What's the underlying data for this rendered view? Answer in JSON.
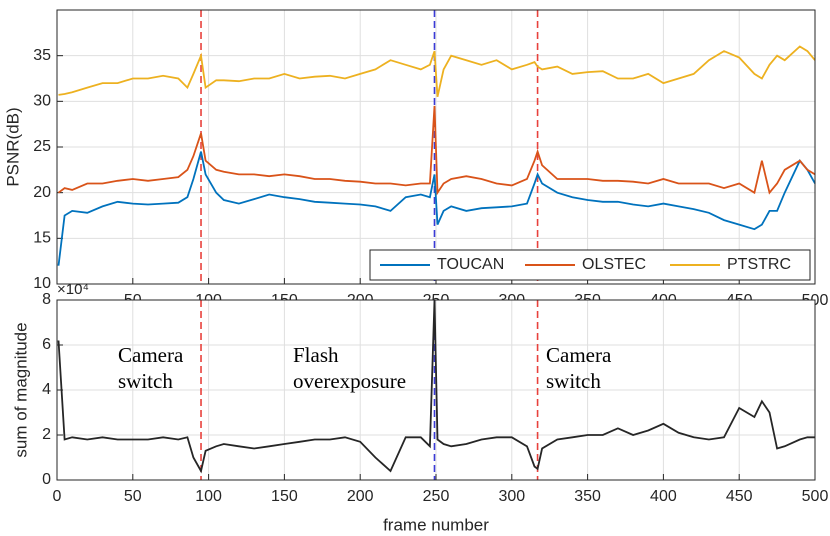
{
  "chart_data": [
    {
      "type": "line",
      "ylabel": "PSNR(dB)",
      "xlim": [
        0,
        500
      ],
      "ylim": [
        10,
        40
      ],
      "xticks": [
        50,
        100,
        150,
        200,
        250,
        300,
        350,
        400,
        450,
        500
      ],
      "yticks": [
        10,
        15,
        20,
        25,
        30,
        35
      ],
      "grid": true,
      "legend": "lower right",
      "x": [
        1,
        5,
        10,
        20,
        30,
        40,
        50,
        60,
        70,
        80,
        86,
        90,
        95,
        98,
        105,
        110,
        120,
        130,
        140,
        150,
        160,
        170,
        180,
        190,
        200,
        210,
        220,
        230,
        240,
        246,
        249,
        251,
        255,
        260,
        270,
        280,
        290,
        300,
        310,
        315,
        317,
        320,
        330,
        340,
        350,
        360,
        370,
        380,
        390,
        400,
        410,
        420,
        430,
        440,
        450,
        460,
        465,
        470,
        475,
        480,
        490,
        495,
        500
      ],
      "series": [
        {
          "name": "TOUCAN",
          "color": "#0072bd",
          "values": [
            12,
            17.5,
            18,
            17.8,
            18.5,
            19,
            18.8,
            18.7,
            18.8,
            18.9,
            19.5,
            21.5,
            24.5,
            22,
            20,
            19.2,
            18.8,
            19.3,
            19.8,
            19.5,
            19.3,
            19,
            18.9,
            18.8,
            18.7,
            18.5,
            18,
            19.5,
            19.8,
            19.5,
            22,
            16.5,
            18,
            18.5,
            18,
            18.3,
            18.4,
            18.5,
            18.8,
            21,
            22,
            21,
            20,
            19.5,
            19.2,
            19,
            19,
            18.7,
            18.5,
            18.8,
            18.5,
            18.2,
            17.8,
            17,
            16.5,
            16,
            16.5,
            18,
            18,
            20,
            23.5,
            22.5,
            21
          ]
        },
        {
          "name": "OLSTEC",
          "color": "#d95319",
          "values": [
            20,
            20.5,
            20.3,
            21,
            21,
            21.3,
            21.5,
            21.3,
            21.5,
            21.7,
            22.5,
            24,
            26.5,
            23.5,
            22.5,
            22.3,
            22,
            22,
            21.8,
            22,
            21.8,
            21.5,
            21.5,
            21.3,
            21.2,
            21,
            21,
            20.8,
            21,
            21,
            29.5,
            20,
            21,
            21.5,
            21.8,
            21.5,
            21,
            20.8,
            21.5,
            23.5,
            24.5,
            23,
            21.5,
            21.5,
            21.5,
            21.3,
            21.3,
            21.2,
            21,
            21.5,
            21,
            21,
            21,
            20.5,
            21,
            20,
            23.5,
            20,
            21,
            22.5,
            23.5,
            22.5,
            22
          ]
        },
        {
          "name": "PTSTRC",
          "color": "#edb120",
          "values": [
            30.7,
            30.8,
            31,
            31.5,
            32,
            32,
            32.5,
            32.5,
            32.8,
            32.5,
            31.5,
            33,
            35,
            31.5,
            32.3,
            32.3,
            32.2,
            32.5,
            32.5,
            33,
            32.5,
            32.7,
            32.8,
            32.5,
            33,
            33.5,
            34.5,
            34,
            33.5,
            34,
            35.5,
            30.5,
            33.5,
            35,
            34.5,
            34,
            34.5,
            33.5,
            34,
            34.3,
            33.8,
            33.5,
            33.8,
            33,
            33.2,
            33.3,
            32.5,
            32.5,
            33,
            32,
            32.5,
            33,
            34.5,
            35.5,
            34.8,
            33,
            32.5,
            34,
            35,
            34.5,
            36,
            35.5,
            34.5
          ]
        }
      ],
      "vlines": [
        {
          "x": 95,
          "color": "#e8413c"
        },
        {
          "x": 249,
          "color": "#3a3ad6"
        },
        {
          "x": 317,
          "color": "#e8413c"
        }
      ]
    },
    {
      "type": "line",
      "ylabel": "sum of magnitude",
      "xlabel": "frame number",
      "yscale_label": "×10⁴",
      "xlim": [
        0,
        500
      ],
      "ylim": [
        0,
        8
      ],
      "xticks": [
        0,
        50,
        100,
        150,
        200,
        250,
        300,
        350,
        400,
        450,
        500
      ],
      "yticks": [
        0,
        2,
        4,
        6,
        8
      ],
      "grid": true,
      "x": [
        1,
        5,
        10,
        20,
        30,
        40,
        50,
        60,
        70,
        80,
        86,
        90,
        95,
        98,
        105,
        110,
        120,
        130,
        140,
        150,
        160,
        170,
        180,
        190,
        200,
        210,
        220,
        230,
        240,
        246,
        249,
        251,
        255,
        260,
        270,
        280,
        290,
        300,
        310,
        315,
        317,
        320,
        330,
        340,
        350,
        360,
        370,
        380,
        390,
        400,
        410,
        420,
        430,
        440,
        450,
        460,
        465,
        470,
        475,
        480,
        490,
        495,
        500
      ],
      "series": [
        {
          "color": "#262626",
          "values": [
            6.2,
            1.8,
            1.9,
            1.8,
            1.9,
            1.8,
            1.8,
            1.8,
            1.9,
            1.8,
            1.9,
            1,
            0.4,
            1.3,
            1.5,
            1.6,
            1.5,
            1.4,
            1.5,
            1.6,
            1.7,
            1.8,
            1.8,
            1.9,
            1.7,
            1,
            0.4,
            1.9,
            1.9,
            1.5,
            8,
            1.8,
            1.6,
            1.5,
            1.6,
            1.8,
            1.9,
            1.9,
            1.5,
            0.6,
            0.5,
            1.4,
            1.8,
            1.9,
            2,
            2,
            2.3,
            2,
            2.2,
            2.5,
            2.1,
            1.9,
            1.8,
            1.9,
            3.2,
            2.8,
            3.5,
            3,
            1.4,
            1.5,
            1.8,
            1.9,
            1.9
          ]
        }
      ],
      "vlines": [
        {
          "x": 95,
          "color": "#e8413c"
        },
        {
          "x": 249,
          "color": "#3a3ad6"
        },
        {
          "x": 317,
          "color": "#e8413c"
        }
      ],
      "annotations": [
        [
          "Camera",
          "switch"
        ],
        [
          "Flash",
          "overexposure"
        ],
        [
          "Camera",
          "switch"
        ]
      ]
    }
  ]
}
